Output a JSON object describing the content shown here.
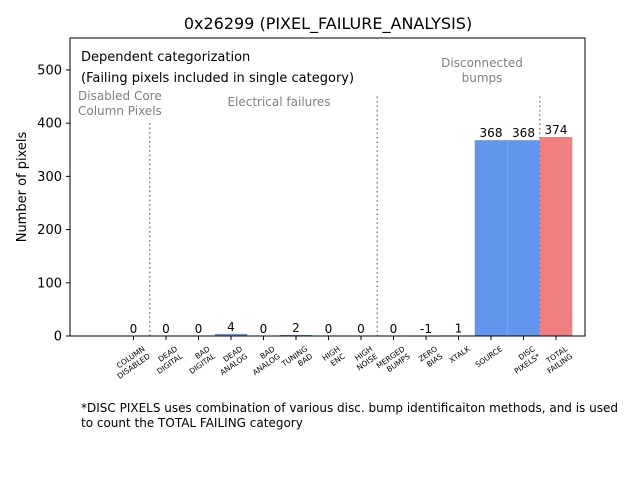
{
  "chart_data": {
    "type": "bar",
    "title": "0x26299 (PIXEL_FAILURE_ANALYSIS)",
    "xlabel": "",
    "ylabel": "Number of pixels",
    "ylim": [
      0,
      560
    ],
    "yticks": [
      0,
      100,
      200,
      300,
      400,
      500
    ],
    "grid": false,
    "categories": [
      [
        "COLUMN",
        "DISABLED"
      ],
      [
        "DEAD",
        "DIGITAL"
      ],
      [
        "BAD",
        "DIGITAL"
      ],
      [
        "DEAD",
        "ANALOG"
      ],
      [
        "BAD",
        "ANALOG"
      ],
      [
        "TUNING",
        "BAD"
      ],
      [
        "HIGH",
        "ENC"
      ],
      [
        "HIGH",
        "NOISE"
      ],
      [
        "MERGED",
        "BUMPS"
      ],
      [
        "ZERO",
        "BIAS"
      ],
      [
        "XTALK"
      ],
      [
        "SOURCE"
      ],
      [
        "DISC",
        "PIXELS*"
      ],
      [
        "TOTAL",
        "FAILING"
      ]
    ],
    "values": [
      0,
      0,
      0,
      4,
      0,
      2,
      0,
      0,
      0,
      -1,
      1,
      368,
      368,
      374
    ],
    "bar_colors": [
      "#6495ed",
      "#6495ed",
      "#6495ed",
      "#6495ed",
      "#6495ed",
      "#6495ed",
      "#6495ed",
      "#6495ed",
      "#6495ed",
      "#6495ed",
      "#6495ed",
      "#6495ed",
      "#6495ed",
      "#f08080"
    ],
    "data_labels": [
      "0",
      "0",
      "0",
      "4",
      "0",
      "2",
      "0",
      "0",
      "0",
      "-1",
      "1",
      "368",
      "368",
      "374"
    ],
    "annotations": {
      "header_line1": "Dependent categorization",
      "header_line2": "(Failing pixels included in single category)",
      "group_disabled": [
        "Disabled Core",
        "Column Pixels"
      ],
      "group_electrical": "Electrical failures",
      "group_disconnected": [
        "Disconnected",
        "bumps"
      ]
    },
    "separators": [
      {
        "after_category": 0,
        "top_value": 400
      },
      {
        "after_category": 7,
        "top_value": 450
      },
      {
        "after_category": 12,
        "top_value": 450
      }
    ]
  },
  "footnote": "*DISC PIXELS uses combination of various disc. bump identificaiton methods, and is used to count the TOTAL FAILING category",
  "colors": {
    "bar": "#6495ed",
    "total": "#f08080",
    "annotation": "#808080"
  }
}
